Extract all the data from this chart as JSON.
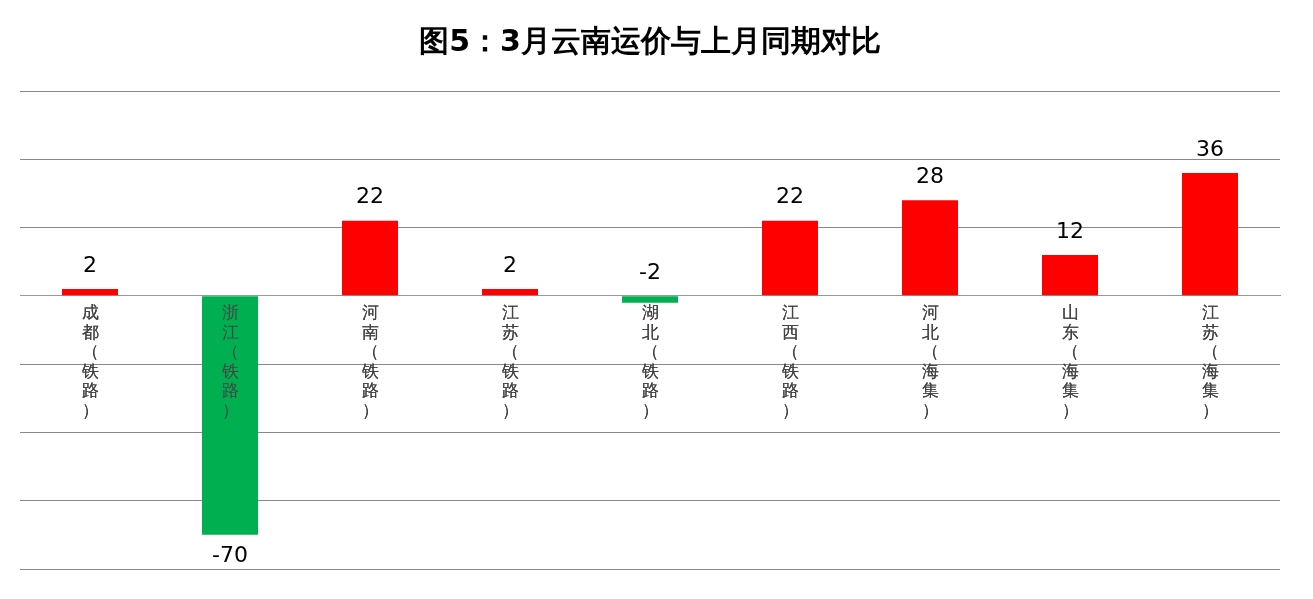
{
  "chart_data": {
    "type": "bar",
    "title": "图5：3月云南运价与上月同期对比",
    "categories": [
      "成都（铁路）",
      "浙江（铁路）",
      "河南（铁路）",
      "江苏（铁路）",
      "湖北（铁路）",
      "江西（铁路）",
      "河北（海集）",
      "山东（海集）",
      "江苏（海集）"
    ],
    "values": [
      2,
      -70,
      22,
      2,
      -2,
      22,
      28,
      12,
      36
    ],
    "colors": [
      "#ff0000",
      "#00b050",
      "#ff0000",
      "#ff0000",
      "#00b050",
      "#ff0000",
      "#ff0000",
      "#ff0000",
      "#ff0000"
    ],
    "ylim": [
      -80,
      60
    ],
    "yticks": [
      {
        "value": -80,
        "label": null
      },
      {
        "value": -60,
        "label": null
      },
      {
        "value": -40,
        "label": null
      },
      {
        "value": -20,
        "label": null
      },
      {
        "value": 0,
        "label": null
      },
      {
        "value": 20,
        "label": null
      },
      {
        "value": 40,
        "label": null
      },
      {
        "value": 60,
        "label": null
      }
    ],
    "grid": "y",
    "tick_labels": "x",
    "data_labels": true
  }
}
